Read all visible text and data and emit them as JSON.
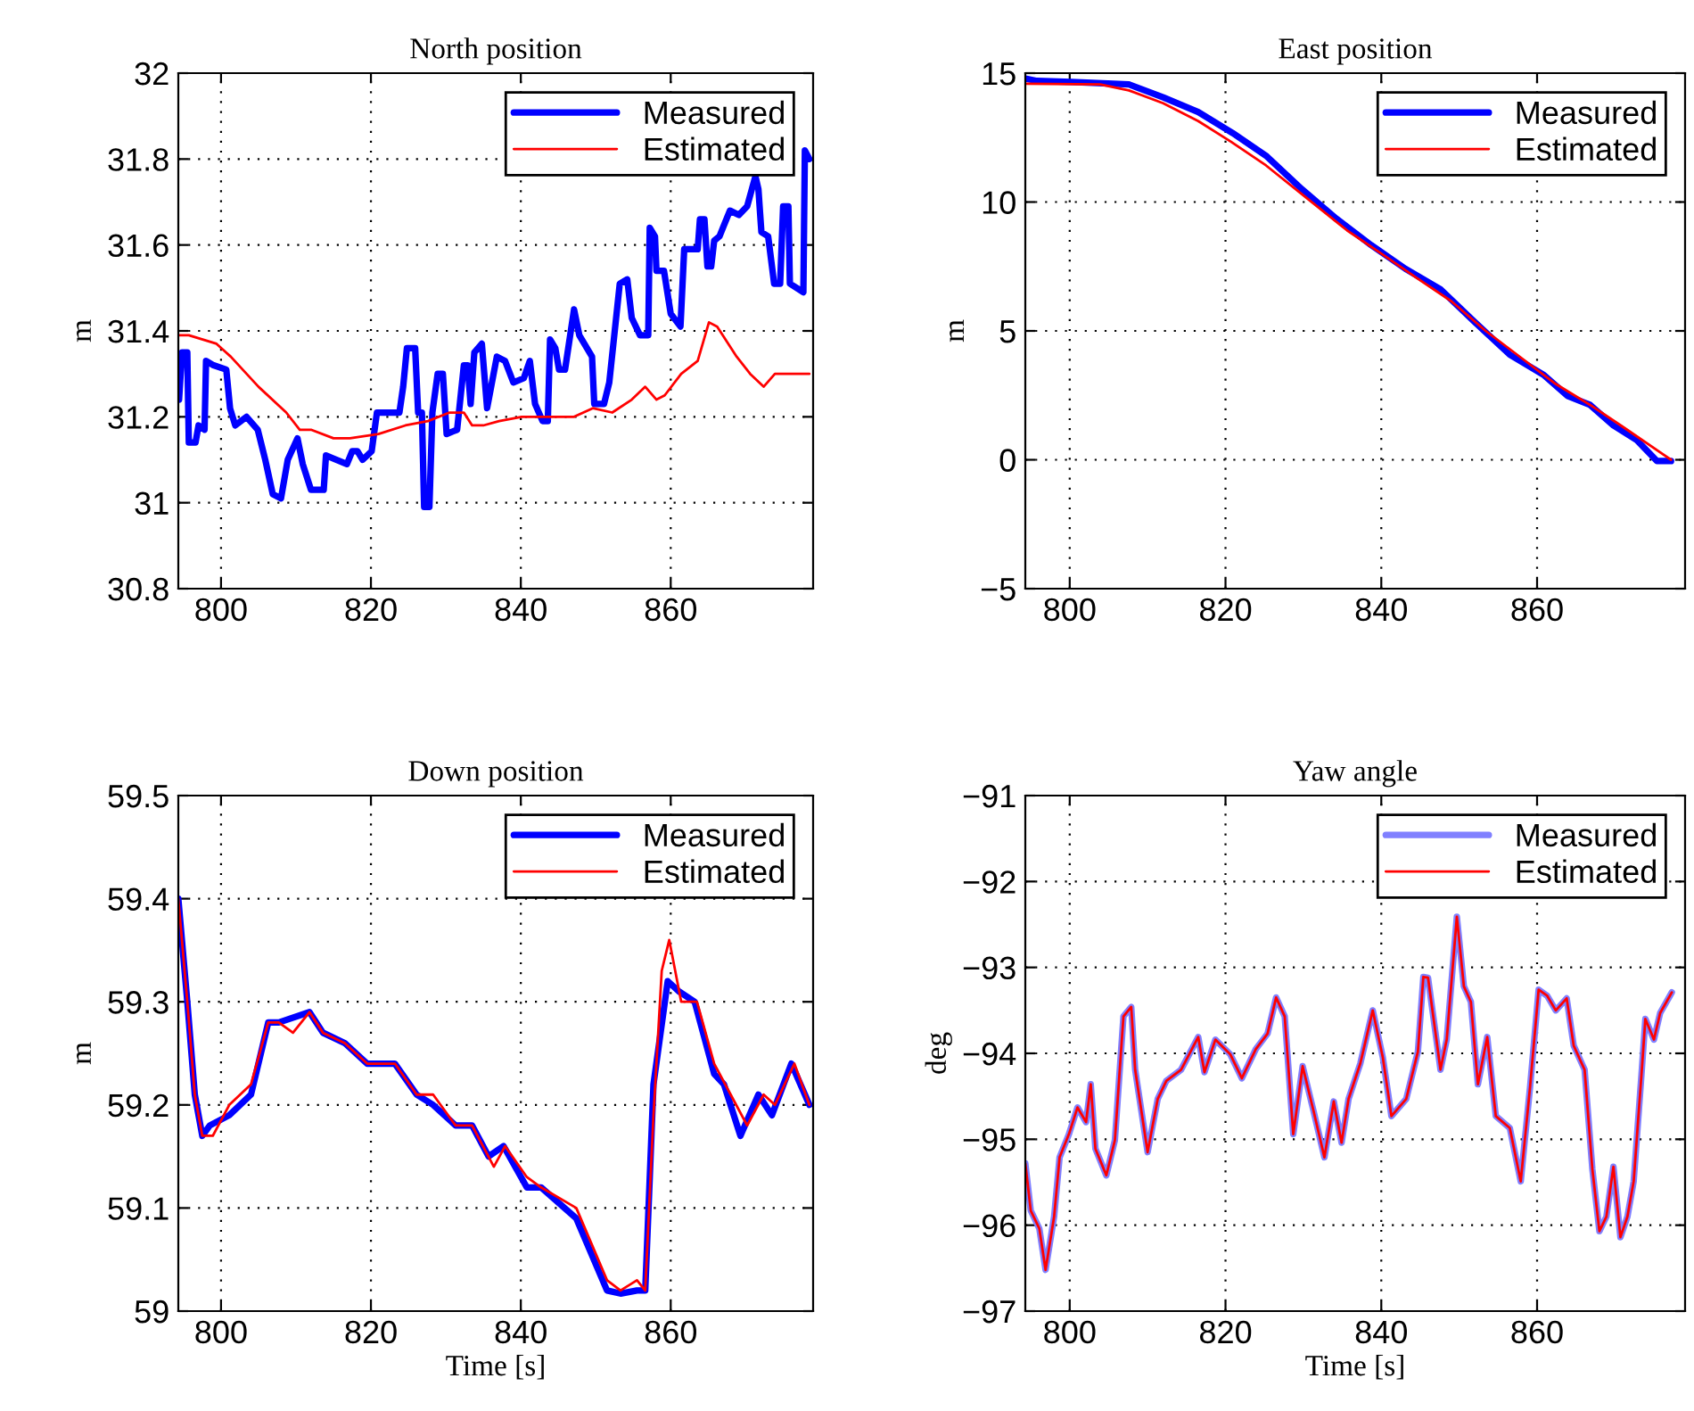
{
  "chart_data": [
    {
      "type": "line",
      "title": "North position",
      "ylabel": "m",
      "xlim": [
        794.3,
        879
      ],
      "xticks": [
        800,
        820,
        840,
        860
      ],
      "ylim": [
        30.8,
        32
      ],
      "yticks": [
        30.8,
        31,
        31.2,
        31.4,
        31.6,
        31.8,
        32
      ],
      "grid": true,
      "legend": "top right",
      "series": [
        {
          "name": "Measured",
          "color": "#0000ff",
          "x": [
            794.4,
            794.8,
            795.5,
            795.7,
            796.6,
            797,
            797.8,
            798,
            799,
            800.7,
            801.2,
            801.9,
            803.4,
            804.9,
            805.9,
            806.9,
            808,
            808.9,
            810.2,
            810.9,
            812,
            813.7,
            814,
            816.8,
            817.5,
            818.2,
            818.9,
            820.1,
            820.8,
            822,
            823.8,
            824.3,
            824.8,
            825.9,
            826.3,
            826.8,
            827.1,
            827.8,
            828.2,
            828.9,
            829.6,
            830.1,
            831.5,
            832.4,
            832.9,
            833.3,
            833.8,
            834.8,
            835.5,
            836.8,
            837.9,
            839,
            840.4,
            841.2,
            841.9,
            842.9,
            843.6,
            843.9,
            844.6,
            845.1,
            845.9,
            847.1,
            847.8,
            849.5,
            849.8,
            851.1,
            851.8,
            853.2,
            854.2,
            854.8,
            855.9,
            857,
            857.2,
            857.9,
            858.1,
            859.1,
            860,
            861.3,
            861.8,
            863.6,
            863.9,
            864.5,
            864.9,
            865.4,
            865.8,
            866.5,
            867.9,
            869.1,
            870.2,
            871.3,
            871.7,
            872.1,
            873,
            873.8,
            874.6,
            875,
            875.7,
            875.9,
            877.7,
            877.9,
            878.5
          ],
          "values": [
            31.24,
            31.35,
            31.35,
            31.14,
            31.14,
            31.18,
            31.17,
            31.33,
            31.32,
            31.31,
            31.22,
            31.18,
            31.2,
            31.17,
            31.1,
            31.02,
            31.01,
            31.1,
            31.15,
            31.09,
            31.03,
            31.03,
            31.11,
            31.09,
            31.12,
            31.12,
            31.1,
            31.12,
            31.21,
            31.21,
            31.21,
            31.27,
            31.36,
            31.36,
            31.21,
            31.21,
            30.99,
            30.99,
            31.21,
            31.3,
            31.3,
            31.16,
            31.17,
            31.32,
            31.32,
            31.23,
            31.35,
            31.37,
            31.22,
            31.34,
            31.33,
            31.28,
            31.29,
            31.33,
            31.23,
            31.19,
            31.19,
            31.38,
            31.36,
            31.31,
            31.31,
            31.45,
            31.39,
            31.34,
            31.23,
            31.23,
            31.28,
            31.51,
            31.52,
            31.43,
            31.39,
            31.39,
            31.64,
            31.62,
            31.54,
            31.54,
            31.44,
            31.41,
            31.59,
            31.59,
            31.66,
            31.66,
            31.55,
            31.55,
            31.61,
            31.62,
            31.68,
            31.67,
            31.69,
            31.76,
            31.73,
            31.63,
            31.62,
            31.51,
            31.51,
            31.69,
            31.69,
            31.51,
            31.49,
            31.82,
            31.8
          ]
        },
        {
          "name": "Estimated",
          "color": "#ff0000",
          "x": [
            794.4,
            795.7,
            799.4,
            801.3,
            805,
            808.7,
            810.5,
            812,
            815,
            817.2,
            821,
            824.6,
            827.6,
            830.5,
            832.4,
            833.5,
            835,
            837.1,
            840.1,
            843,
            847.1,
            849.6,
            852.2,
            854.8,
            856.6,
            858.1,
            859.2,
            861.4,
            863.6,
            865.1,
            866.2,
            868.8,
            870.6,
            872.4,
            873.9,
            875.7,
            878.5
          ],
          "values": [
            31.39,
            31.39,
            31.37,
            31.34,
            31.27,
            31.21,
            31.17,
            31.17,
            31.15,
            31.15,
            31.16,
            31.18,
            31.19,
            31.21,
            31.21,
            31.18,
            31.18,
            31.19,
            31.2,
            31.2,
            31.2,
            31.22,
            31.21,
            31.24,
            31.27,
            31.24,
            31.25,
            31.3,
            31.33,
            31.42,
            31.41,
            31.34,
            31.3,
            31.27,
            31.3,
            31.3,
            31.3
          ]
        }
      ]
    },
    {
      "type": "line",
      "title": "East position",
      "ylabel": "m",
      "xlim": [
        794.3,
        879
      ],
      "xticks": [
        800,
        820,
        840,
        860
      ],
      "ylim": [
        -5,
        15
      ],
      "yticks": [
        {
          "value": -5,
          "label": "−5"
        },
        0,
        5,
        10,
        15
      ],
      "grid": true,
      "legend": "top right",
      "series": [
        {
          "name": "Measured",
          "color": "#0000ff",
          "x": [
            794.3,
            795.8,
            800.2,
            807.6,
            812,
            816.5,
            820.9,
            825.3,
            829.8,
            834.2,
            838.7,
            843.1,
            847.6,
            852,
            856.5,
            860.9,
            863.9,
            866.8,
            869.8,
            872.8,
            875.4,
            877.2
          ],
          "values": [
            14.79,
            14.7,
            14.66,
            14.56,
            14.06,
            13.49,
            12.68,
            11.77,
            10.5,
            9.36,
            8.33,
            7.41,
            6.61,
            5.34,
            4.08,
            3.28,
            2.48,
            2.13,
            1.33,
            0.76,
            -0.05,
            -0.05
          ]
        },
        {
          "name": "Estimated",
          "color": "#ff0000",
          "x": [
            794.3,
            803.9,
            807.6,
            812,
            816.5,
            820.7,
            825.2,
            830.4,
            835.6,
            840.1,
            844.5,
            849,
            853.4,
            857.9,
            862.4,
            866.8,
            871.3,
            877.2
          ],
          "values": [
            14.59,
            14.56,
            14.33,
            13.83,
            13.14,
            12.34,
            11.42,
            10.16,
            8.9,
            7.98,
            7.06,
            6.15,
            5.0,
            3.97,
            2.94,
            2.13,
            1.22,
            0
          ]
        }
      ]
    },
    {
      "type": "line",
      "title": "Down position",
      "xlabel": "Time [s]",
      "ylabel": "m",
      "xlim": [
        794.3,
        879
      ],
      "xticks": [
        800,
        820,
        840,
        860
      ],
      "ylim": [
        59,
        59.5
      ],
      "yticks": [
        59,
        59.1,
        59.2,
        59.3,
        59.4,
        59.5
      ],
      "grid": true,
      "legend": "top right",
      "series": [
        {
          "name": "Measured",
          "color": "#0000ff",
          "x": [
            794.3,
            795.5,
            796.5,
            797.5,
            798.5,
            801.1,
            804,
            806.3,
            807.7,
            811.8,
            813.6,
            816.5,
            819.5,
            823.2,
            826.1,
            828.3,
            831.3,
            833.5,
            835.7,
            837.7,
            840.8,
            842.7,
            847.4,
            851.5,
            853.3,
            855.5,
            856.6,
            857.7,
            859.6,
            861.1,
            863.2,
            865.8,
            867.1,
            869.3,
            871.7,
            873.5,
            876.1,
            878.5
          ],
          "values": [
            59.4,
            59.3,
            59.21,
            59.17,
            59.18,
            59.19,
            59.21,
            59.28,
            59.28,
            59.29,
            59.27,
            59.26,
            59.24,
            59.24,
            59.21,
            59.2,
            59.18,
            59.18,
            59.15,
            59.16,
            59.12,
            59.12,
            59.09,
            59.02,
            59.017,
            59.02,
            59.02,
            59.22,
            59.32,
            59.31,
            59.3,
            59.23,
            59.22,
            59.17,
            59.21,
            59.19,
            59.24,
            59.2
          ]
        },
        {
          "name": "Estimated",
          "color": "#ff0000",
          "x": [
            794.3,
            795.5,
            796.5,
            797.5,
            798.9,
            801.1,
            804,
            806.3,
            807.7,
            809.6,
            811.8,
            813.6,
            816.5,
            819.5,
            823.2,
            826.1,
            828.3,
            831.3,
            833.5,
            836.4,
            837.9,
            840.8,
            842.7,
            847.4,
            851.5,
            853.3,
            855.5,
            856.6,
            857.7,
            858.8,
            859.8,
            861.4,
            863.5,
            865.8,
            868,
            870.2,
            872.4,
            873.9,
            876.5,
            878.5
          ],
          "values": [
            59.4,
            59.3,
            59.21,
            59.17,
            59.17,
            59.2,
            59.22,
            59.28,
            59.28,
            59.27,
            59.29,
            59.27,
            59.26,
            59.24,
            59.24,
            59.21,
            59.21,
            59.18,
            59.18,
            59.14,
            59.16,
            59.13,
            59.12,
            59.1,
            59.03,
            59.02,
            59.03,
            59.02,
            59.19,
            59.33,
            59.36,
            59.3,
            59.3,
            59.24,
            59.21,
            59.18,
            59.21,
            59.2,
            59.24,
            59.2
          ]
        }
      ]
    },
    {
      "type": "line",
      "title": "Yaw angle",
      "xlabel": "Time [s]",
      "ylabel": "deg",
      "xlim": [
        794.3,
        879
      ],
      "xticks": [
        800,
        820,
        840,
        860
      ],
      "ylim": [
        -97,
        -91
      ],
      "yticks": [
        {
          "value": -97,
          "label": "−97"
        },
        {
          "value": -96,
          "label": "−96"
        },
        {
          "value": -95,
          "label": "−95"
        },
        {
          "value": -94,
          "label": "−94"
        },
        {
          "value": -93,
          "label": "−93"
        },
        {
          "value": -92,
          "label": "−92"
        },
        {
          "value": -91,
          "label": "−91"
        }
      ],
      "grid": true,
      "legend": "top right",
      "series": [
        {
          "name": "Measured",
          "color": "#8080ff",
          "x": [
            794.3,
            795,
            796.1,
            796.9,
            798,
            798.7,
            799.9,
            801,
            802.1,
            802.7,
            803.3,
            804.7,
            805.8,
            806.9,
            807.9,
            808.4,
            810,
            811.3,
            812.4,
            814.3,
            816.5,
            817.3,
            818.7,
            820.6,
            822.1,
            823.9,
            825.4,
            826.5,
            827.6,
            828.7,
            829.9,
            831.3,
            832.7,
            833.9,
            834.9,
            835.8,
            837.3,
            838.9,
            840.2,
            841.3,
            843.2,
            844.7,
            845.4,
            846,
            847.6,
            848.4,
            849.7,
            850.6,
            851.5,
            852.4,
            853.6,
            854.7,
            856.5,
            857.9,
            859.1,
            860.2,
            861.3,
            862.4,
            863.8,
            864.7,
            866.1,
            867.1,
            868,
            868.9,
            869.8,
            870.7,
            871.6,
            872.4,
            873.4,
            873.9,
            875,
            875.8,
            877.3
          ],
          "values": [
            -95.28,
            -95.83,
            -96.04,
            -96.52,
            -95.9,
            -95.21,
            -94.94,
            -94.63,
            -94.8,
            -94.36,
            -95.11,
            -95.42,
            -95.01,
            -93.57,
            -93.46,
            -94.19,
            -95.15,
            -94.53,
            -94.32,
            -94.19,
            -93.81,
            -94.22,
            -93.84,
            -94.01,
            -94.29,
            -93.95,
            -93.77,
            -93.35,
            -93.57,
            -94.94,
            -94.15,
            -94.67,
            -95.21,
            -94.56,
            -95.04,
            -94.53,
            -94.12,
            -93.5,
            -94.05,
            -94.73,
            -94.53,
            -93.98,
            -93.11,
            -93.12,
            -94.19,
            -93.84,
            -92.41,
            -93.22,
            -93.4,
            -94.36,
            -93.81,
            -94.73,
            -94.87,
            -95.49,
            -94.39,
            -93.26,
            -93.33,
            -93.5,
            -93.36,
            -93.91,
            -94.19,
            -95.35,
            -96.07,
            -95.9,
            -95.32,
            -96.14,
            -95.9,
            -95.49,
            -94.25,
            -93.6,
            -93.84,
            -93.53,
            -93.29
          ]
        },
        {
          "name": "Estimated",
          "color": "#ff0000",
          "x": [
            794.3,
            795,
            796.1,
            796.9,
            798,
            798.7,
            799.9,
            801,
            802.1,
            802.7,
            803.3,
            804.7,
            805.8,
            806.9,
            807.9,
            808.4,
            810,
            811.3,
            812.4,
            814.3,
            816.5,
            817.3,
            818.7,
            820.6,
            822.1,
            823.9,
            825.4,
            826.5,
            827.6,
            828.7,
            829.9,
            831.3,
            832.7,
            833.9,
            834.9,
            835.8,
            837.3,
            838.9,
            840.2,
            841.3,
            843.2,
            844.7,
            845.4,
            846,
            847.6,
            848.4,
            849.7,
            850.6,
            851.5,
            852.4,
            853.6,
            854.7,
            856.5,
            857.9,
            859.1,
            860.2,
            861.3,
            862.4,
            863.8,
            864.7,
            866.1,
            867.1,
            868,
            868.9,
            869.8,
            870.7,
            871.6,
            872.4,
            873.4,
            873.9,
            875,
            875.8,
            877.3
          ],
          "values": [
            -95.28,
            -95.83,
            -96.04,
            -96.52,
            -95.9,
            -95.21,
            -94.94,
            -94.63,
            -94.8,
            -94.36,
            -95.11,
            -95.42,
            -95.01,
            -93.57,
            -93.46,
            -94.19,
            -95.15,
            -94.53,
            -94.32,
            -94.19,
            -93.81,
            -94.22,
            -93.84,
            -94.01,
            -94.29,
            -93.95,
            -93.77,
            -93.35,
            -93.57,
            -94.94,
            -94.15,
            -94.67,
            -95.21,
            -94.56,
            -95.04,
            -94.53,
            -94.12,
            -93.5,
            -94.05,
            -94.73,
            -94.53,
            -93.98,
            -93.11,
            -93.12,
            -94.19,
            -93.84,
            -92.41,
            -93.22,
            -93.4,
            -94.36,
            -93.81,
            -94.73,
            -94.87,
            -95.49,
            -94.39,
            -93.26,
            -93.33,
            -93.5,
            -93.36,
            -93.91,
            -94.19,
            -95.35,
            -96.07,
            -95.9,
            -95.32,
            -96.14,
            -95.9,
            -95.49,
            -94.25,
            -93.6,
            -93.84,
            -93.53,
            -93.29
          ]
        }
      ]
    }
  ]
}
